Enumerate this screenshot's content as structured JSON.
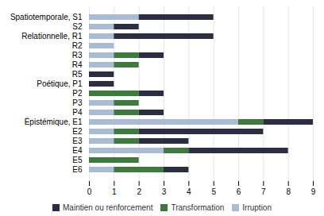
{
  "chart_data": {
    "type": "bar",
    "orientation": "horizontal",
    "stacked": true,
    "categories": [
      "Spatiotemporale, S1",
      "S2",
      "Relationnelle, R1",
      "R2",
      "R3",
      "R4",
      "R5",
      "Poétique, P1",
      "P2",
      "P3",
      "P4",
      "Épistémique, E1",
      "E2",
      "E3",
      "E4",
      "E5",
      "E6"
    ],
    "series": [
      {
        "name": "Irruption",
        "color": "#aabbd4",
        "values": [
          2,
          1,
          1,
          1,
          1,
          1,
          0,
          0,
          0,
          1,
          1,
          6,
          1,
          1,
          3,
          0,
          1
        ]
      },
      {
        "name": "Transformation",
        "color": "#3d7a3d",
        "values": [
          0,
          0,
          0,
          0,
          1,
          1,
          0,
          0,
          2,
          1,
          1,
          1,
          1,
          1,
          1,
          2,
          2
        ]
      },
      {
        "name": "Maintien ou renforcement",
        "color": "#2b2d42",
        "values": [
          3,
          1,
          4,
          0,
          1,
          0,
          1,
          1,
          1,
          0,
          1,
          2,
          5,
          2,
          4,
          0,
          1
        ]
      }
    ],
    "xlim": [
      0,
      9
    ],
    "xticks": [
      0,
      1,
      2,
      3,
      4,
      5,
      6,
      7,
      8,
      9
    ],
    "grid": true,
    "legend": "bottom"
  }
}
